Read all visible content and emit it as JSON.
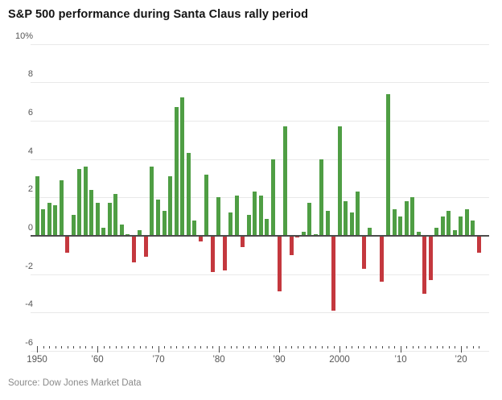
{
  "title": "S&P 500 performance during Santa Claus rally period",
  "source": "Source: Dow Jones Market Data",
  "colors": {
    "positive_bar": "#4f9e44",
    "negative_bar": "#c4383e",
    "gridline": "#e9e9e9",
    "zero_line": "#4c4c4c",
    "tick": "#4c4c4c",
    "axis_text": "#555555",
    "title_text": "#141414",
    "source_text": "#8a8a8a"
  },
  "chart_data": {
    "type": "bar",
    "title": "S&P 500 performance during Santa Claus rally period",
    "xlabel": "",
    "ylabel": "%",
    "ylim": [
      -6,
      10
    ],
    "grid": true,
    "legend": false,
    "x": [
      1950,
      1951,
      1952,
      1953,
      1954,
      1955,
      1956,
      1957,
      1958,
      1959,
      1960,
      1961,
      1962,
      1963,
      1964,
      1965,
      1966,
      1967,
      1968,
      1969,
      1970,
      1971,
      1972,
      1973,
      1974,
      1975,
      1976,
      1977,
      1978,
      1979,
      1980,
      1981,
      1982,
      1983,
      1984,
      1985,
      1986,
      1987,
      1988,
      1989,
      1990,
      1991,
      1992,
      1993,
      1994,
      1995,
      1996,
      1997,
      1998,
      1999,
      2000,
      2001,
      2002,
      2003,
      2004,
      2005,
      2006,
      2007,
      2008,
      2009,
      2010,
      2011,
      2012,
      2013,
      2014,
      2015,
      2016,
      2017,
      2018,
      2019,
      2020,
      2021,
      2022,
      2023
    ],
    "values": [
      3.1,
      1.4,
      1.7,
      1.6,
      2.9,
      -0.9,
      1.1,
      3.5,
      3.6,
      2.4,
      1.7,
      0.4,
      1.7,
      2.2,
      0.6,
      0.1,
      -1.4,
      0.3,
      -1.1,
      3.6,
      1.9,
      1.3,
      3.1,
      6.7,
      7.2,
      4.3,
      0.8,
      -0.3,
      3.2,
      -1.9,
      2.0,
      -1.8,
      1.2,
      2.1,
      -0.6,
      1.1,
      2.3,
      2.1,
      0.9,
      4.0,
      -2.9,
      5.7,
      -1.0,
      -0.1,
      0.2,
      1.7,
      0.1,
      4.0,
      1.3,
      -3.9,
      5.7,
      1.8,
      1.2,
      2.3,
      -1.7,
      0.4,
      0.0,
      -2.4,
      7.4,
      1.4,
      1.0,
      1.8,
      2.0,
      0.2,
      -3.0,
      -2.3,
      0.4,
      1.0,
      1.3,
      0.3,
      1.0,
      1.4,
      0.8,
      -0.9
    ],
    "y_ticks": [
      {
        "value": 10,
        "label": "10%"
      },
      {
        "value": 8,
        "label": "8"
      },
      {
        "value": 6,
        "label": "6"
      },
      {
        "value": 4,
        "label": "4"
      },
      {
        "value": 2,
        "label": "2"
      },
      {
        "value": 0,
        "label": "0"
      },
      {
        "value": -2,
        "label": "-2"
      },
      {
        "value": -4,
        "label": "-4"
      },
      {
        "value": -6,
        "label": "-6"
      }
    ],
    "x_tick_labels": [
      {
        "year": 1950,
        "label": "1950"
      },
      {
        "year": 1960,
        "label": "’60"
      },
      {
        "year": 1970,
        "label": "’70"
      },
      {
        "year": 1980,
        "label": "’80"
      },
      {
        "year": 1990,
        "label": "’90"
      },
      {
        "year": 2000,
        "label": "2000"
      },
      {
        "year": 2010,
        "label": "’10"
      },
      {
        "year": 2020,
        "label": "’20"
      }
    ]
  }
}
